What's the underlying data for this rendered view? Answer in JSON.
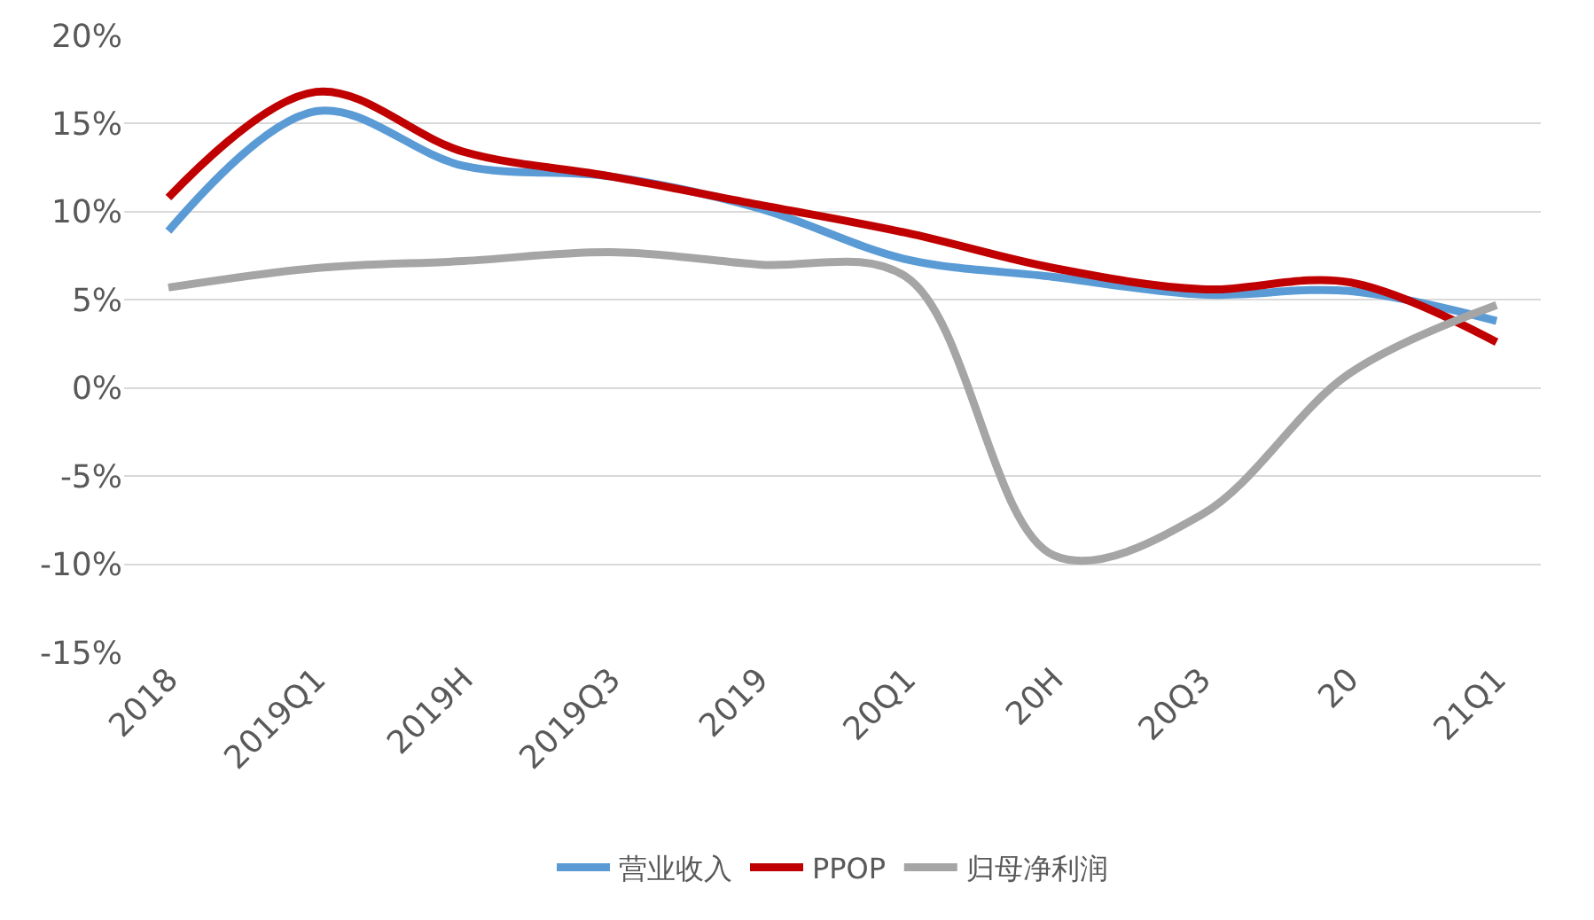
{
  "chart_data": {
    "type": "line",
    "categories": [
      "2018",
      "2019Q1",
      "2019H",
      "2019Q3",
      "2019",
      "20Q1",
      "20H",
      "20Q3",
      "20",
      "21Q1"
    ],
    "series": [
      {
        "name": "营业收入",
        "color": "#5b9bd5",
        "values": [
          8.9,
          15.7,
          12.6,
          12.0,
          10.2,
          7.3,
          6.3,
          5.3,
          5.5,
          3.8
        ]
      },
      {
        "name": "PPOP",
        "color": "#c00000",
        "values": [
          10.8,
          16.8,
          13.4,
          12.0,
          10.4,
          8.8,
          6.8,
          5.6,
          6.0,
          2.6
        ]
      },
      {
        "name": "归母净利润",
        "color": "#a5a5a5",
        "values": [
          5.7,
          6.8,
          7.2,
          7.7,
          7.0,
          6.3,
          -9.5,
          -7.2,
          0.8,
          4.7
        ]
      }
    ],
    "ylim": [
      -15,
      20
    ],
    "yticks": [
      {
        "value": -15,
        "label": "-15%"
      },
      {
        "value": -10,
        "label": "-10%"
      },
      {
        "value": -5,
        "label": "-5%"
      },
      {
        "value": 0,
        "label": "0%"
      },
      {
        "value": 5,
        "label": "5%"
      },
      {
        "value": 10,
        "label": "10%"
      },
      {
        "value": 15,
        "label": "15%"
      },
      {
        "value": 20,
        "label": "20%"
      }
    ],
    "grid": "y",
    "legend": "bottom",
    "marker": "none",
    "line_style": "solid"
  }
}
